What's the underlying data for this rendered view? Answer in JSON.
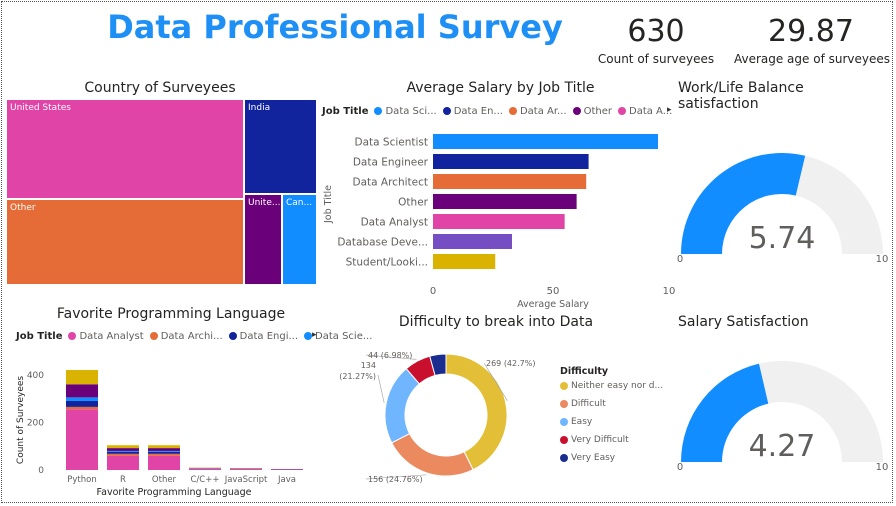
{
  "title": "Data Professional Survey",
  "kpis": {
    "count": {
      "value": "630",
      "label": "Count of surveyees"
    },
    "age": {
      "value": "29.87",
      "label": "Average age of surveyees"
    }
  },
  "colors": {
    "blue": "#118DFF",
    "navy": "#12239E",
    "orange": "#E66C37",
    "purple": "#6B007B",
    "pink": "#E044A7",
    "lavender": "#744EC2",
    "gold": "#D9B300",
    "red": "#D64550",
    "gold_donut": "#E2BF36",
    "salmon": "#EB895F",
    "lightblue": "#6FB6FF",
    "red_donut": "#C8102E",
    "navy_donut": "#1A2D8F",
    "gauge_bg": "#F0F0F0"
  },
  "treemap": {
    "title": "Country of Surveyees",
    "chart_data": {
      "type": "treemap",
      "cells": [
        {
          "label": "United States",
          "color": "#E044A7"
        },
        {
          "label": "Other",
          "color": "#E66C37"
        },
        {
          "label": "India",
          "color": "#12239E"
        },
        {
          "label": "Unite...",
          "color": "#6B007B"
        },
        {
          "label": "Can...",
          "color": "#118DFF"
        }
      ]
    }
  },
  "salary_chart": {
    "title": "Average Salary by Job Title",
    "legend_title": "Job Title",
    "legend_items": [
      "Data Sci...",
      "Data En...",
      "Data Ar...",
      "Other",
      "Data A..."
    ],
    "chart_data": {
      "type": "bar",
      "orientation": "horizontal",
      "categories": [
        "Data Scientist",
        "Data Engineer",
        "Data Architect",
        "Other",
        "Data Analyst",
        "Database Deve...",
        "Student/Looki..."
      ],
      "values": [
        94,
        65,
        64,
        60,
        55,
        33,
        26
      ],
      "colors": [
        "#118DFF",
        "#12239E",
        "#E66C37",
        "#6B007B",
        "#E044A7",
        "#744EC2",
        "#D9B300"
      ],
      "xlabel": "Average Salary",
      "ylabel": "Job Title",
      "xlim": [
        0,
        100
      ],
      "xticks": [
        "0",
        "50",
        "10"
      ]
    }
  },
  "gauge1": {
    "title": "Work/Life Balance satisfaction",
    "chart_data": {
      "type": "gauge",
      "value": 5.74,
      "min": 0,
      "max": 10,
      "value_label": "5.74",
      "min_label": "0",
      "max_label": "10"
    }
  },
  "gauge2": {
    "title": "Salary Satisfaction",
    "chart_data": {
      "type": "gauge",
      "value": 4.27,
      "min": 0,
      "max": 10,
      "value_label": "4.27",
      "min_label": "0",
      "max_label": "10"
    }
  },
  "lang_chart": {
    "title": "Favorite Programming Language",
    "legend_title": "Job Title",
    "legend_items": [
      "Data Analyst",
      "Data Archi...",
      "Data Engi...",
      "Data Scie..."
    ],
    "chart_data": {
      "type": "bar",
      "stacked": true,
      "categories": [
        "Python",
        "R",
        "Other",
        "C/C++",
        "JavaScript",
        "Java"
      ],
      "series": [
        {
          "name": "Data Analyst",
          "color": "#E044A7",
          "values": [
            255,
            60,
            60,
            5,
            4,
            2
          ]
        },
        {
          "name": "Data Architect",
          "color": "#E66C37",
          "values": [
            10,
            8,
            8,
            1,
            1,
            0
          ]
        },
        {
          "name": "Data Engineer",
          "color": "#12239E",
          "values": [
            25,
            8,
            8,
            1,
            1,
            1
          ]
        },
        {
          "name": "Data Scientist",
          "color": "#118DFF",
          "values": [
            15,
            4,
            4,
            1,
            0,
            0
          ]
        },
        {
          "name": "Other",
          "color": "#6B007B",
          "values": [
            55,
            12,
            12,
            1,
            1,
            1
          ]
        },
        {
          "name": "Student/Looking",
          "color": "#D9B300",
          "values": [
            60,
            12,
            12,
            1,
            1,
            0
          ]
        }
      ],
      "xlabel": "Favorite Programming Language",
      "ylabel": "Count of Surveyees",
      "ylim": [
        0,
        420
      ],
      "yticks": [
        "0",
        "200",
        "400"
      ]
    }
  },
  "donut_chart": {
    "title": "Difficulty to break into Data",
    "legend_title": "Difficulty",
    "legend_items": [
      "Neither easy nor d...",
      "Difficult",
      "Easy",
      "Very Difficult",
      "Very Easy"
    ],
    "chart_data": {
      "type": "pie",
      "donut": true,
      "slices": [
        {
          "name": "Neither easy nor difficult",
          "value": 269,
          "label": "269 (42.7%)",
          "color": "#E2BF36"
        },
        {
          "name": "Difficult",
          "value": 156,
          "label": "156 (24.76%)",
          "color": "#EB895F"
        },
        {
          "name": "Easy",
          "value": 134,
          "label": "134 (21.27%)",
          "color": "#6FB6FF"
        },
        {
          "name": "Very Difficult",
          "value": 44,
          "label": "44 (6.98%)",
          "color": "#C8102E"
        },
        {
          "name": "Very Easy",
          "value": 27,
          "label": "",
          "color": "#1A2D8F"
        }
      ]
    }
  }
}
